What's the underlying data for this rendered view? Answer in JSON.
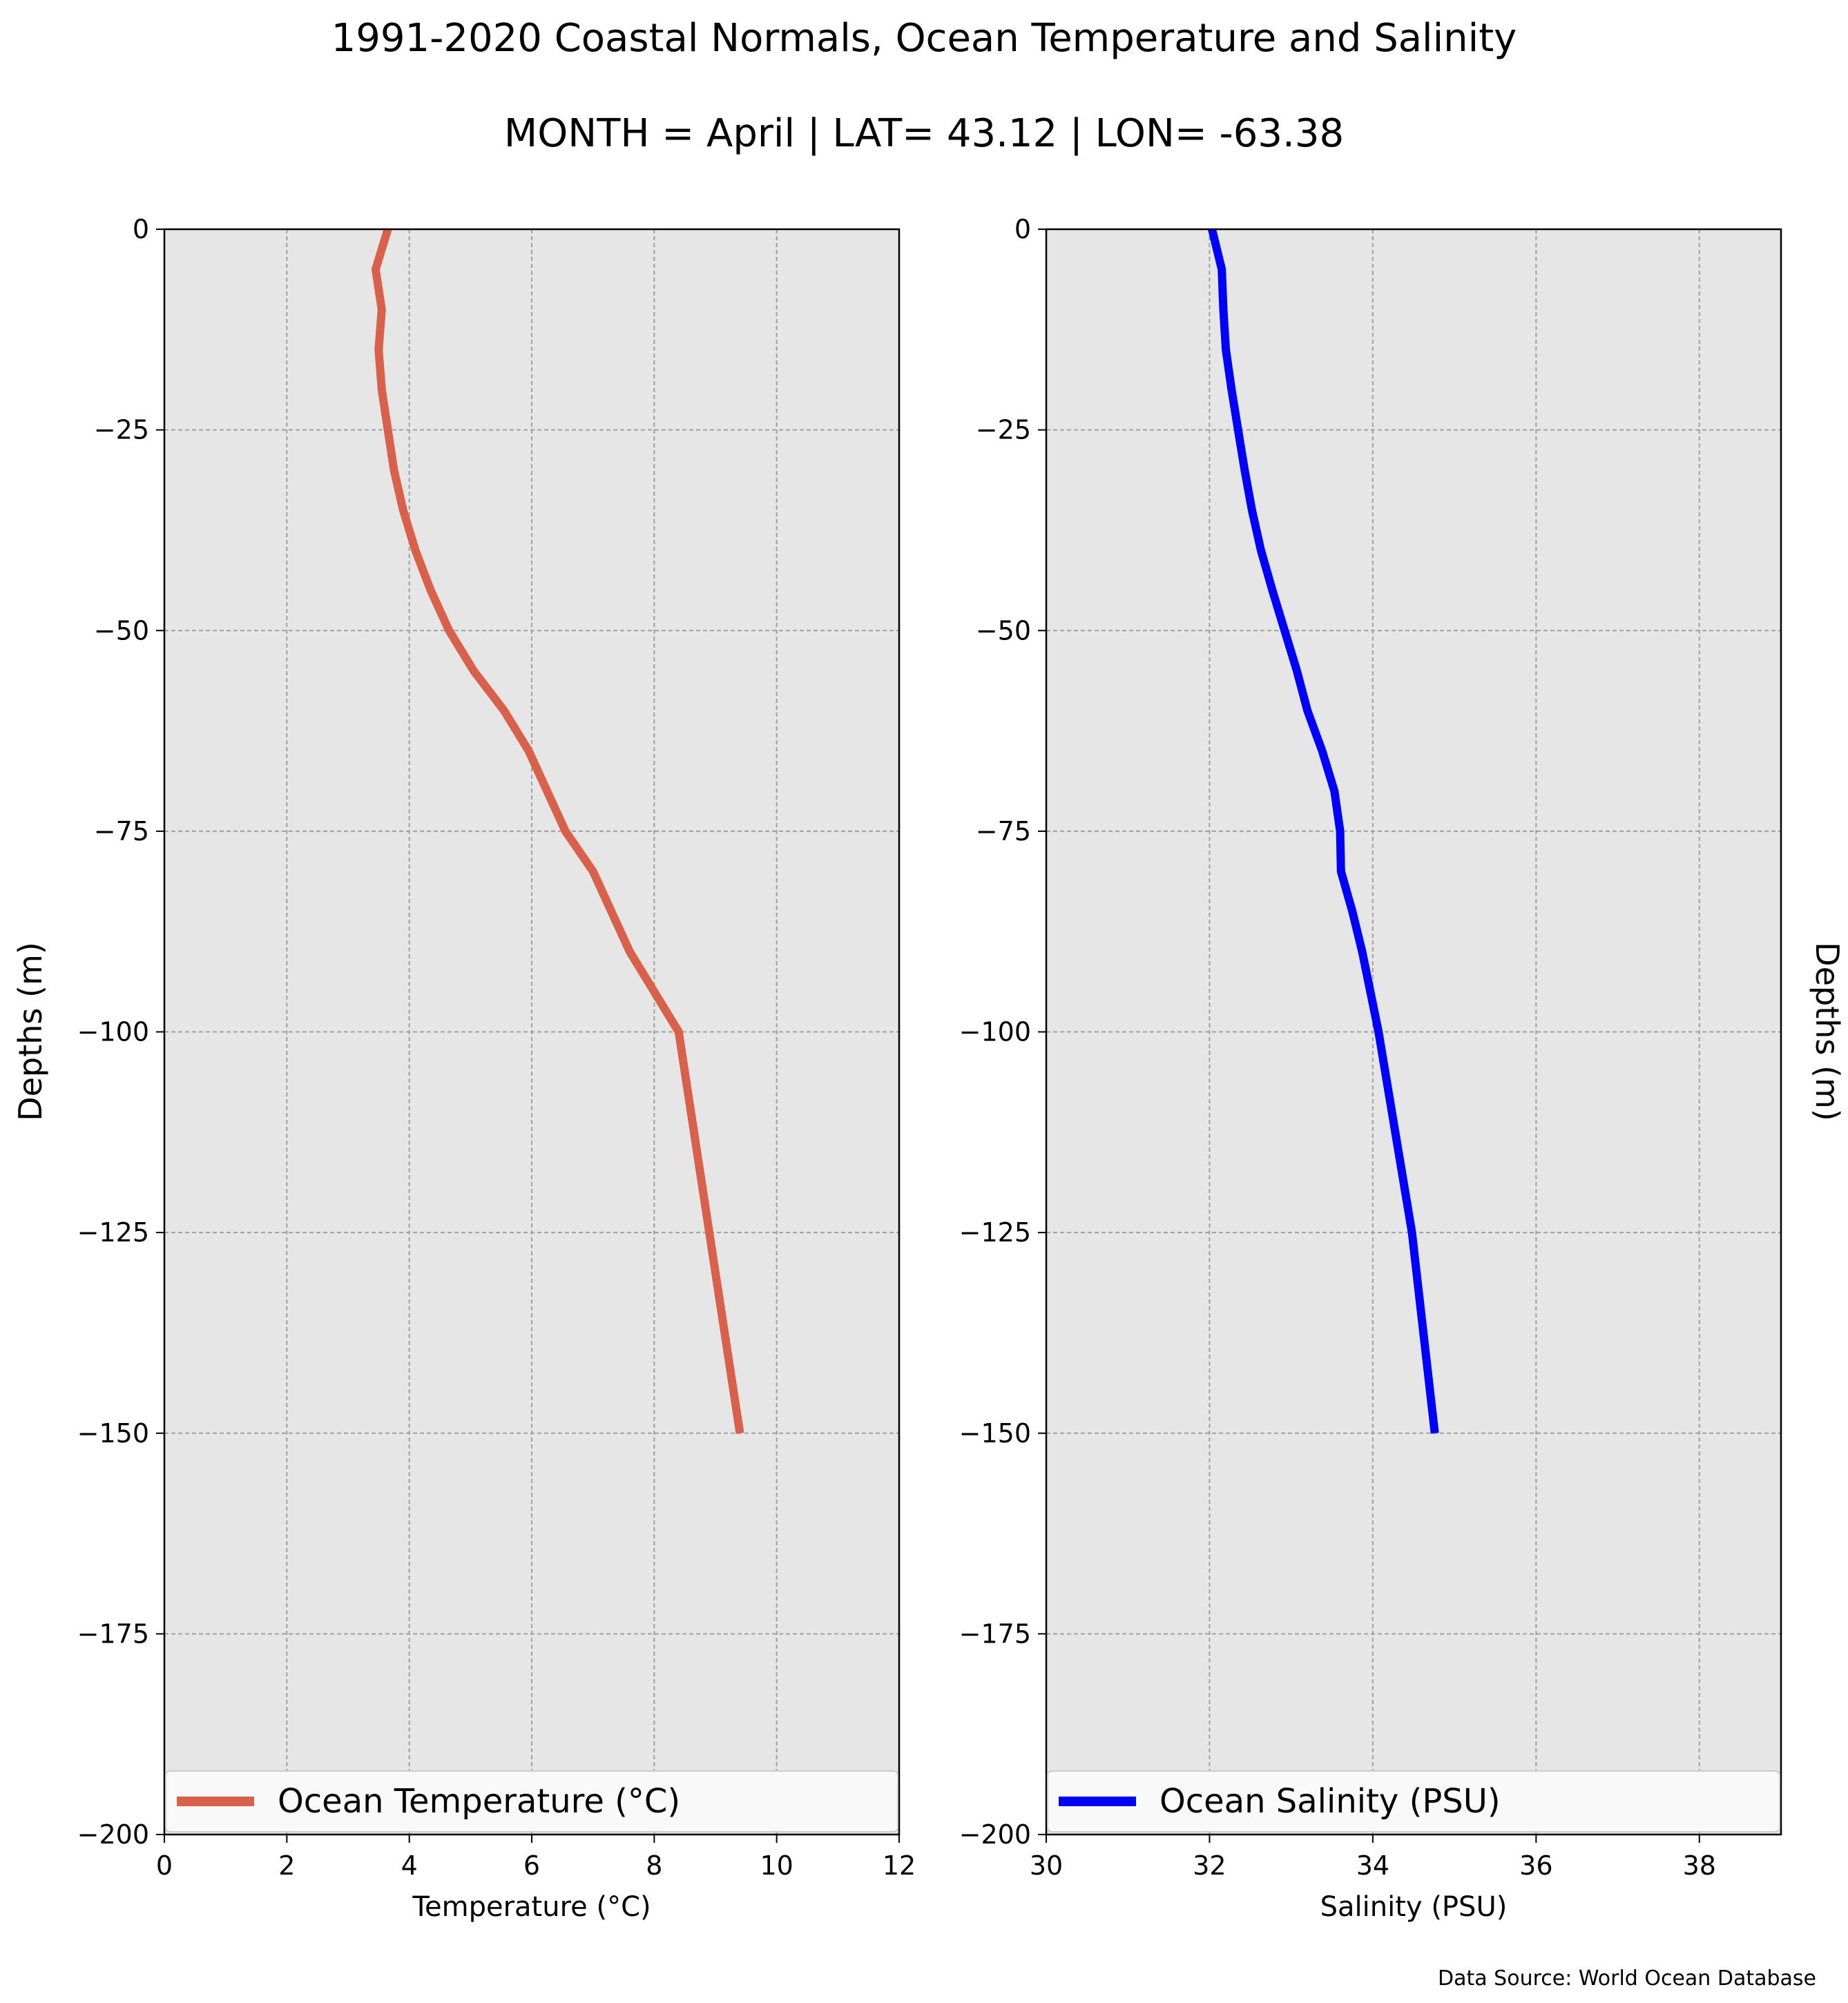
{
  "title": "1991-2020 Coastal Normals, Ocean Temperature and Salinity",
  "subtitle": "MONTH = April | LAT= 43.12 | LON= -63.38",
  "source_note": "Data Source: World Ocean Database",
  "colors": {
    "plot_background": "#e6e6e6",
    "grid": "#a0a0a0",
    "temperature_line": "#d9604a",
    "salinity_line": "#0000ff"
  },
  "chart_data": [
    {
      "type": "line",
      "orientation": "vertical-profile",
      "xlabel": "Temperature (°C)",
      "ylabel": "Depths (m)",
      "xlim": [
        0,
        12
      ],
      "ylim": [
        -200,
        0
      ],
      "xticks": [
        "0",
        "2",
        "4",
        "6",
        "8",
        "10",
        "12"
      ],
      "yticks": [
        "0",
        "−25",
        "−50",
        "−75",
        "−100",
        "−125",
        "−150",
        "−175",
        "−200"
      ],
      "grid": true,
      "legend_position": "bottom",
      "series": [
        {
          "name": "Ocean Temperature (°C)",
          "x": [
            3.65,
            3.45,
            3.55,
            3.5,
            3.55,
            3.65,
            3.75,
            3.9,
            4.1,
            4.35,
            4.65,
            5.05,
            5.55,
            5.95,
            6.25,
            6.55,
            7.0,
            7.6,
            8.0,
            8.4,
            8.9,
            9.4
          ],
          "y": [
            0,
            -5,
            -10,
            -15,
            -20,
            -25,
            -30,
            -35,
            -40,
            -45,
            -50,
            -55,
            -60,
            -65,
            -70,
            -75,
            -80,
            -90,
            -95,
            -100,
            -125,
            -150
          ]
        }
      ]
    },
    {
      "type": "line",
      "orientation": "vertical-profile",
      "xlabel": "Salinity (PSU)",
      "ylabel": "Depths (m)",
      "xlim": [
        30,
        39
      ],
      "ylim": [
        -200,
        0
      ],
      "xticks": [
        "30",
        "32",
        "34",
        "36",
        "38"
      ],
      "yticks": [
        "0",
        "−25",
        "−50",
        "−75",
        "−100",
        "−125",
        "−150",
        "−175",
        "−200"
      ],
      "grid": true,
      "legend_position": "bottom",
      "series": [
        {
          "name": "Ocean Salinity (PSU)",
          "x": [
            32.03,
            32.15,
            32.17,
            32.2,
            32.27,
            32.35,
            32.43,
            32.52,
            32.63,
            32.77,
            32.92,
            33.07,
            33.2,
            33.38,
            33.53,
            33.6,
            33.61,
            33.75,
            33.87,
            34.07,
            34.48,
            34.76
          ],
          "y": [
            0,
            -5,
            -10,
            -15,
            -20,
            -25,
            -30,
            -35,
            -40,
            -45,
            -50,
            -55,
            -60,
            -65,
            -70,
            -75,
            -80,
            -85,
            -90,
            -100,
            -125,
            -150
          ]
        }
      ]
    }
  ]
}
